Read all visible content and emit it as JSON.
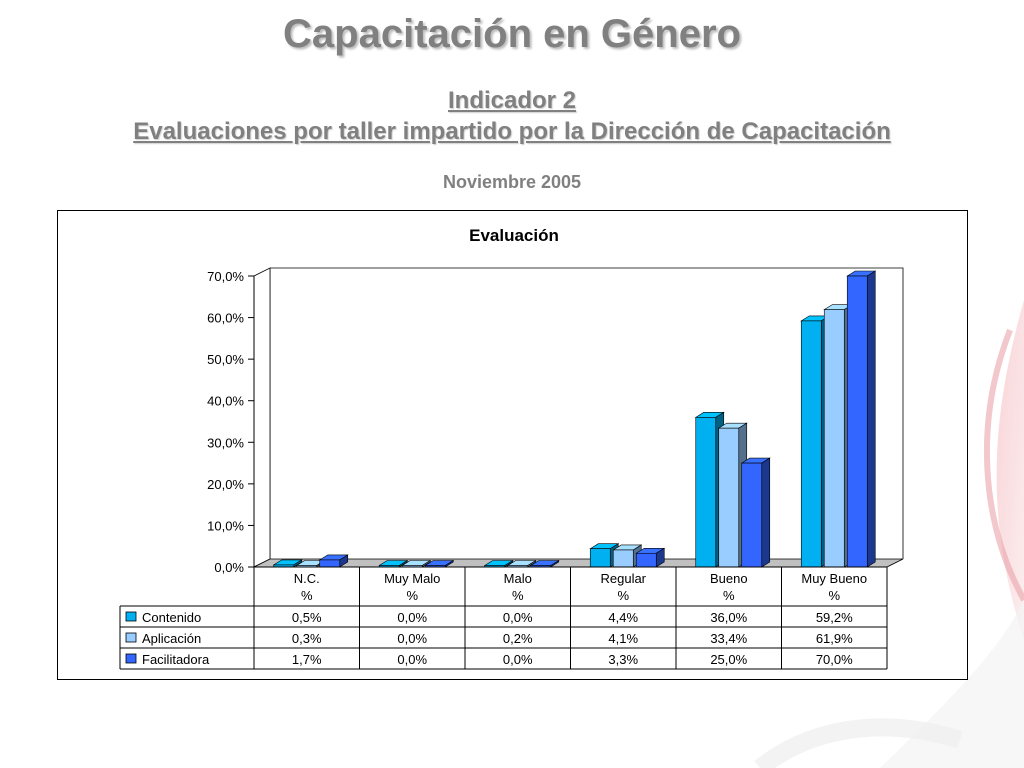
{
  "slide": {
    "title": "Capacitación en Género",
    "indicator": "Indicador 2",
    "subtitle": "Evaluaciones por taller impartido por la Dirección de Capacitación",
    "date": "Noviembre 2005"
  },
  "chart_data": {
    "type": "bar",
    "title": "Evaluación",
    "categories": [
      [
        "N.C.",
        "%"
      ],
      [
        "Muy Malo",
        "%"
      ],
      [
        "Malo",
        "%"
      ],
      [
        "Regular",
        "%"
      ],
      [
        "Bueno",
        "%"
      ],
      [
        "Muy Bueno",
        "%"
      ]
    ],
    "series": [
      {
        "name": "Contenido",
        "values": [
          0.5,
          0.0,
          0.0,
          4.4,
          36.0,
          59.2
        ],
        "labels": [
          "0,5%",
          "0,0%",
          "0,0%",
          "4,4%",
          "36,0%",
          "59,2%"
        ],
        "color": "#00b0f0"
      },
      {
        "name": "Aplicación",
        "values": [
          0.3,
          0.0,
          0.2,
          4.1,
          33.4,
          61.9
        ],
        "labels": [
          "0,3%",
          "0,0%",
          "0,2%",
          "4,1%",
          "33,4%",
          "61,9%"
        ],
        "color": "#99ccff"
      },
      {
        "name": "Facilitadora",
        "values": [
          1.7,
          0.0,
          0.0,
          3.3,
          25.0,
          70.0
        ],
        "labels": [
          "1,7%",
          "0,0%",
          "0,0%",
          "3,3%",
          "25,0%",
          "70,0%"
        ],
        "color": "#3366ff"
      }
    ],
    "y_ticks": [
      "0,0%",
      "10,0%",
      "20,0%",
      "30,0%",
      "40,0%",
      "50,0%",
      "60,0%",
      "70,0%"
    ],
    "ylim": [
      0,
      70
    ],
    "grid": false,
    "legend": "data-table",
    "three_d": true
  }
}
